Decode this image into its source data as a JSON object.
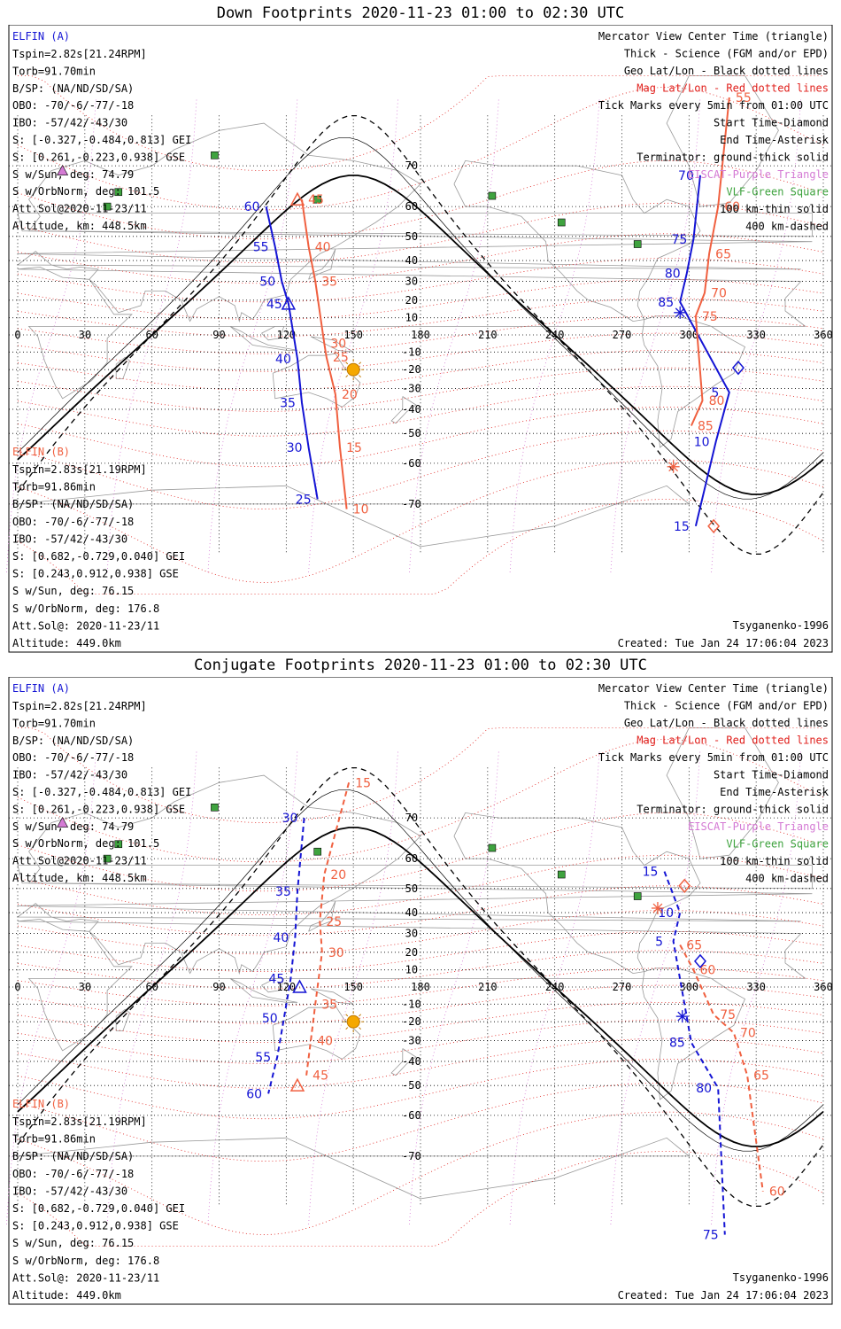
{
  "panels": [
    {
      "id": "down",
      "title": "Down Footprints 2020-11-23 01:00 to 02:30 UTC",
      "elfin_a": {
        "name": "ELFIN (A)",
        "lines": [
          "Tspin=2.82s[21.24RPM]",
          "Torb=91.70min",
          "B/SP: (NA/ND/SD/SA)",
          "OBO: -70/-6/-77/-18",
          "IBO: -57/42/-43/30",
          "S: [-0.327,-0.484,0.813] GEI",
          "S: [0.261,-0.223,0.938] GSE",
          "S w/Sun, deg: 74.79",
          "S w/OrbNorm, deg: 101.5",
          "Att.Sol@2020-11-23/11",
          "Altitude, km: 448.5km"
        ]
      },
      "elfin_b": {
        "name": "ELFIN (B)",
        "lines": [
          "Tspin=2.83s[21.19RPM]",
          "Torb=91.86min",
          "B/SP: (NA/ND/SD/SA)",
          "OBO: -70/-6/-77/-18",
          "IBO: -57/42/-43/30",
          "S: [0.682,-0.729,0.040] GEI",
          "S: [0.243,0.912,0.938] GSE",
          "S w/Sun, deg: 76.15",
          "S w/OrbNorm, deg: 176.8",
          "Att.Sol@: 2020-11-23/11",
          "Altitude: 449.0km"
        ]
      },
      "model": "Tsyganenko-1996",
      "created": "Created: Tue Jan 24 17:06:04 2023",
      "track_a": [
        {
          "label": "70",
          "lon": 305,
          "lat": 68
        },
        {
          "label": "75",
          "lon": 302,
          "lat": 49
        },
        {
          "label": "80",
          "lon": 299,
          "lat": 34
        },
        {
          "label": "85",
          "lon": 296,
          "lat": 19
        },
        {
          "label": "5",
          "lon": 318,
          "lat": -32
        },
        {
          "label": "10",
          "lon": 312,
          "lat": -53
        },
        {
          "label": "15",
          "lon": 303,
          "lat": -74
        }
      ],
      "track_a_west": [
        {
          "label": "60",
          "lon": 111,
          "lat": 60
        },
        {
          "label": "55",
          "lon": 115,
          "lat": 46
        },
        {
          "label": "50",
          "lon": 118,
          "lat": 30
        },
        {
          "label": "45",
          "lon": 121,
          "lat": 18
        },
        {
          "label": "40",
          "lon": 125,
          "lat": -14
        },
        {
          "label": "35",
          "lon": 127,
          "lat": -37
        },
        {
          "label": "30",
          "lon": 130,
          "lat": -55
        },
        {
          "label": "25",
          "lon": 134,
          "lat": -69
        }
      ],
      "track_b_west": [
        {
          "label": "45",
          "lon": 127,
          "lat": 62
        },
        {
          "label": "40",
          "lon": 130,
          "lat": 46
        },
        {
          "label": "35",
          "lon": 133,
          "lat": 30
        },
        {
          "label": "30",
          "lon": 137,
          "lat": -5
        },
        {
          "label": "25",
          "lon": 138,
          "lat": -13
        },
        {
          "label": "20",
          "lon": 142,
          "lat": -33
        },
        {
          "label": "15",
          "lon": 144,
          "lat": -55
        },
        {
          "label": "10",
          "lon": 147,
          "lat": -71
        }
      ],
      "track_b_east": [
        {
          "label": "55",
          "lon": 318,
          "lat": 80
        },
        {
          "label": "60",
          "lon": 313,
          "lat": 60
        },
        {
          "label": "65",
          "lon": 309,
          "lat": 43
        },
        {
          "label": "70",
          "lon": 307,
          "lat": 24
        },
        {
          "label": "75",
          "lon": 303,
          "lat": 11
        },
        {
          "label": "80",
          "lon": 306,
          "lat": -36
        },
        {
          "label": "85",
          "lon": 301,
          "lat": -47
        }
      ]
    },
    {
      "id": "conj",
      "title": "Conjugate Footprints 2020-11-23 01:00 to 02:30 UTC",
      "elfin_a": {
        "name": "ELFIN (A)",
        "lines": [
          "Tspin=2.82s[21.24RPM]",
          "Torb=91.70min",
          "B/SP: (NA/ND/SD/SA)",
          "OBO: -70/-6/-77/-18",
          "IBO: -57/42/-43/30",
          "S: [-0.327,-0.484,0.813] GEI",
          "S: [0.261,-0.223,0.938] GSE",
          "S w/Sun, deg: 74.79",
          "S w/OrbNorm, deg: 101.5",
          "Att.Sol@2020-11-23/11",
          "Altitude, km: 448.5km"
        ]
      },
      "elfin_b": {
        "name": "ELFIN (B)",
        "lines": [
          "Tspin=2.83s[21.19RPM]",
          "Torb=91.86min",
          "B/SP: (NA/ND/SD/SA)",
          "OBO: -70/-6/-77/-18",
          "IBO: -57/42/-43/30",
          "S: [0.682,-0.729,0.040] GEI",
          "S: [0.243,0.912,0.938] GSE",
          "S w/Sun, deg: 76.15",
          "S w/OrbNorm, deg: 176.8",
          "Att.Sol@: 2020-11-23/11",
          "Altitude: 449.0km"
        ]
      },
      "model": "Tsyganenko-1996",
      "created": "Created: Tue Jan 24 17:06:04 2023",
      "track_a_west": [
        {
          "label": "30",
          "lon": 128,
          "lat": 70
        },
        {
          "label": "35",
          "lon": 125,
          "lat": 49
        },
        {
          "label": "40",
          "lon": 124,
          "lat": 28
        },
        {
          "label": "45",
          "lon": 122,
          "lat": 5
        },
        {
          "label": "50",
          "lon": 119,
          "lat": -18
        },
        {
          "label": "55",
          "lon": 116,
          "lat": -38
        },
        {
          "label": "60",
          "lon": 112,
          "lat": -53
        }
      ],
      "track_b_west": [
        {
          "label": "15",
          "lon": 148,
          "lat": 76
        },
        {
          "label": "20",
          "lon": 137,
          "lat": 55
        },
        {
          "label": "25",
          "lon": 135,
          "lat": 36
        },
        {
          "label": "30",
          "lon": 136,
          "lat": 20
        },
        {
          "label": "35",
          "lon": 133,
          "lat": -10
        },
        {
          "label": "40",
          "lon": 131,
          "lat": -30
        },
        {
          "label": "45",
          "lon": 129,
          "lat": -46
        }
      ],
      "track_a_east": [
        {
          "label": "15",
          "lon": 289,
          "lat": 56
        },
        {
          "label": "10",
          "lon": 296,
          "lat": 40
        },
        {
          "label": "5",
          "lon": 293,
          "lat": 26
        },
        {
          "label": "85",
          "lon": 301,
          "lat": -31
        },
        {
          "label": "80",
          "lon": 313,
          "lat": -51
        },
        {
          "label": "75",
          "lon": 316,
          "lat": -81
        }
      ],
      "track_b_east": [
        {
          "label": "65",
          "lon": 296,
          "lat": 24
        },
        {
          "label": "60",
          "lon": 302,
          "lat": 10
        },
        {
          "label": "75",
          "lon": 311,
          "lat": -16
        },
        {
          "label": "70",
          "lon": 320,
          "lat": -26
        },
        {
          "label": "65",
          "lon": 326,
          "lat": -46
        },
        {
          "label": "60",
          "lon": 333,
          "lat": -76
        }
      ]
    }
  ],
  "legend": [
    {
      "text": "Mercator View Center Time (triangle)",
      "color": "#000000"
    },
    {
      "text": "Thick - Science (FGM and/or EPD)",
      "color": "#000000"
    },
    {
      "text": "Geo Lat/Lon - Black dotted lines",
      "color": "#000000"
    },
    {
      "text": "Mag Lat/Lon - Red dotted lines",
      "color": "#e0201c"
    },
    {
      "text": "Tick Marks every 5min from 01:00 UTC",
      "color": "#000000"
    },
    {
      "text": "Start Time-Diamond",
      "color": "#000000"
    },
    {
      "text": "End Time-Asterisk",
      "color": "#000000"
    },
    {
      "text": "Terminator: ground-thick solid",
      "color": "#000000"
    },
    {
      "text": "EISCAT-Purple Triangle",
      "color": "#d47ad4"
    },
    {
      "text": "VLF-Green Square",
      "color": "#3fa33f"
    },
    {
      "text": "100 km-thin solid",
      "color": "#000000"
    },
    {
      "text": "400 km-dashed",
      "color": "#000000"
    }
  ],
  "lon_ticks": [
    "0",
    "30",
    "60",
    "90",
    "120",
    "150",
    "180",
    "210",
    "240",
    "270",
    "300",
    "330",
    "360"
  ],
  "lat_ticks_north": [
    "70",
    "60",
    "50",
    "40",
    "30",
    "20",
    "10"
  ],
  "lat_ticks_south": [
    "-10",
    "-20",
    "-30",
    "-40",
    "-50",
    "-60",
    "-70"
  ],
  "colors": {
    "elfin_a": "#1414d4",
    "elfin_b": "#f06040",
    "mag_grid": "#e0201c",
    "geo_grid": "#000000",
    "eiscat": "#d47ad4",
    "vlf": "#3fa33f",
    "sun": "#f5a800"
  }
}
